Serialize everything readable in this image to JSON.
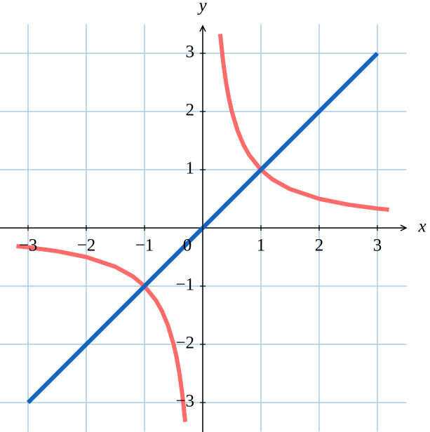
{
  "chart_data": {
    "type": "line",
    "x_label": "x",
    "y_label": "y",
    "xlim": [
      -3.5,
      3.5
    ],
    "ylim": [
      -3.5,
      3.5
    ],
    "xticks": [
      {
        "value": -3,
        "label": "−3"
      },
      {
        "value": -2,
        "label": "−2"
      },
      {
        "value": -1,
        "label": "−1"
      },
      0,
      1,
      2,
      3
    ],
    "yticks": [
      {
        "value": -3,
        "label": "−3"
      },
      {
        "value": -2,
        "label": "−2"
      },
      {
        "value": -1,
        "label": "−1"
      },
      1,
      2,
      3
    ],
    "grid": true,
    "x": [
      -3.2,
      -3,
      -2.5,
      -2,
      -1.5,
      -1.2,
      -1,
      -0.8,
      -0.7,
      -0.6,
      -0.5,
      -0.45,
      -0.4,
      -0.35,
      -0.3,
      0,
      0.3,
      0.35,
      0.4,
      0.45,
      0.5,
      0.6,
      0.7,
      0.8,
      1,
      1.2,
      1.5,
      2,
      2.5,
      3,
      3.2
    ],
    "series": [
      {
        "color": "#ff6b6b",
        "values": [
          -0.313,
          -0.333,
          -0.4,
          -0.5,
          -0.667,
          -0.833,
          -1,
          -1.25,
          -1.429,
          -1.667,
          -2,
          -2.222,
          -2.5,
          -2.857,
          -3.333,
          null,
          3.333,
          2.857,
          2.5,
          2.222,
          2,
          1.667,
          1.429,
          1.25,
          1,
          0.833,
          0.667,
          0.5,
          0.4,
          0.333,
          0.313
        ]
      },
      {
        "color": "#1565c0",
        "values": [
          null,
          -3,
          -2.5,
          -2,
          -1.5,
          -1.2,
          -1,
          -0.8,
          -0.7,
          -0.6,
          -0.5,
          -0.45,
          -0.4,
          -0.35,
          -0.3,
          0,
          0.3,
          0.35,
          0.4,
          0.45,
          0.5,
          0.6,
          0.7,
          0.8,
          1,
          1.2,
          1.5,
          2,
          2.5,
          3,
          null
        ]
      }
    ]
  }
}
